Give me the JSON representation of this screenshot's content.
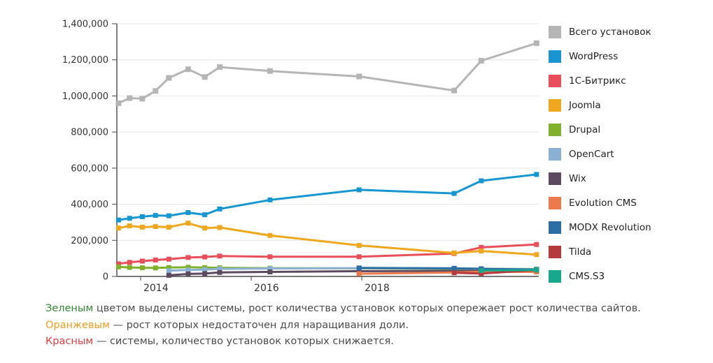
{
  "chart_data": {
    "type": "line",
    "x": [
      2013.6,
      2013.8,
      2014.03,
      2014.27,
      2014.51,
      2014.86,
      2015.16,
      2015.43,
      2016.34,
      2017.95,
      2019.67,
      2020.16,
      2021.16
    ],
    "series": [
      {
        "name": "Всего установок",
        "color": "#b5b5b5",
        "marker": 8,
        "values": [
          960000,
          988000,
          985000,
          1028000,
          1100000,
          1148000,
          1105000,
          1160000,
          1138000,
          1108000,
          1030000,
          1195000,
          1292000
        ]
      },
      {
        "name": "WordPress",
        "color": "#1796d2",
        "marker": 7,
        "values": [
          313000,
          322000,
          331000,
          338000,
          336000,
          354000,
          342000,
          374000,
          424000,
          480000,
          460000,
          530000,
          565000
        ]
      },
      {
        "name": "1С-Битрикс",
        "color": "#e84f5b",
        "marker": 7,
        "values": [
          70000,
          78000,
          85000,
          91000,
          96000,
          105000,
          108000,
          113000,
          109000,
          109000,
          127000,
          161000,
          177000
        ]
      },
      {
        "name": "Joomla",
        "color": "#efa81d",
        "marker": 7,
        "values": [
          268000,
          280000,
          273000,
          276000,
          273000,
          295000,
          268000,
          271000,
          227000,
          172000,
          130000,
          141000,
          121000
        ]
      },
      {
        "name": "Drupal",
        "color": "#7fb22a",
        "marker": 7,
        "values": [
          53000,
          50000,
          48000,
          47000,
          49000,
          51000,
          49000,
          48000,
          46000,
          45000,
          43000,
          42000,
          41000
        ]
      },
      {
        "name": "OpenCart",
        "color": "#8ab0d3",
        "marker": 7,
        "values": [
          null,
          null,
          null,
          null,
          32000,
          36000,
          38000,
          42000,
          44000,
          46000,
          45000,
          43000,
          40000
        ]
      },
      {
        "name": "Wix",
        "color": "#5b4a5f",
        "marker": 7,
        "values": [
          null,
          null,
          null,
          null,
          6000,
          14000,
          16000,
          22000,
          25000,
          29000,
          31000,
          30000,
          28000
        ]
      },
      {
        "name": "Evolution CMS",
        "color": "#ed7a4d",
        "marker": 7,
        "values": [
          null,
          null,
          null,
          null,
          null,
          null,
          null,
          null,
          null,
          15000,
          22000,
          26000,
          25000
        ]
      },
      {
        "name": "MODX Revolution",
        "color": "#2d6da5",
        "marker": 7,
        "values": [
          null,
          null,
          null,
          null,
          null,
          null,
          null,
          null,
          null,
          47000,
          45000,
          42000,
          38000
        ]
      },
      {
        "name": "Tilda",
        "color": "#b43a3d",
        "marker": 7,
        "values": [
          null,
          null,
          null,
          null,
          null,
          null,
          null,
          null,
          null,
          null,
          20000,
          16000,
          35000
        ]
      },
      {
        "name": "CMS.S3",
        "color": "#16a98c",
        "marker": 7,
        "values": [
          null,
          null,
          null,
          null,
          null,
          null,
          null,
          null,
          null,
          null,
          null,
          33000,
          36000
        ]
      }
    ],
    "title": "",
    "xlabel": "",
    "ylabel": "",
    "xlim": [
      2013.57,
      2021.2
    ],
    "ylim": [
      0,
      1400000
    ],
    "grid": true,
    "legend_position": "right",
    "y_axis": {
      "tick_values": [
        0,
        200000,
        400000,
        600000,
        800000,
        1000000,
        1200000,
        1400000
      ],
      "tick_labels": [
        "0",
        "200,000",
        "400,000",
        "600,000",
        "800,000",
        "1,000,000",
        "1,200,000",
        "1,400,000"
      ]
    },
    "x_axis": {
      "tick_values": [
        2014,
        2016,
        2018
      ],
      "tick_labels": [
        "2014",
        "2016",
        "2018"
      ]
    }
  },
  "footer": {
    "lines": [
      {
        "highlight": "Зеленым",
        "highlight_color": "#338a33",
        "rest": " цветом выделены системы, рост количества установок которых опережает рост количества сайтов."
      },
      {
        "highlight": "Оранжевым",
        "highlight_color": "#f0a01f",
        "rest": " — рост которых недостаточен для наращивания доли."
      },
      {
        "highlight": "Красным",
        "highlight_color": "#d84040",
        "rest": " — системы, количество установок которых снижается."
      }
    ]
  }
}
